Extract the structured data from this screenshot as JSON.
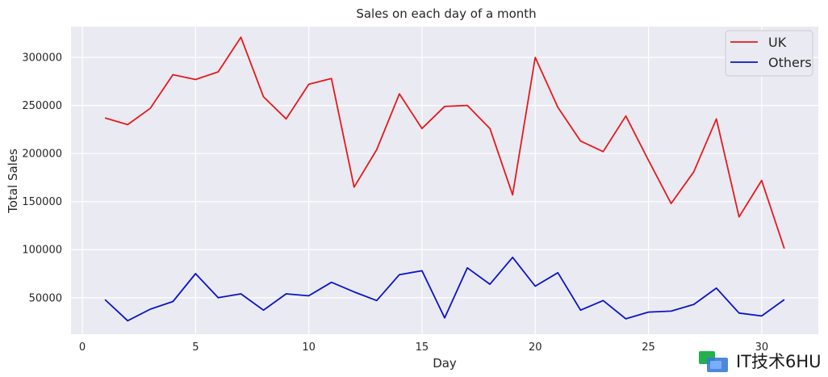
{
  "chart_data": {
    "type": "line",
    "title": "Sales on each day of a month",
    "xlabel": "Day",
    "ylabel": "Total Sales",
    "xlim": [
      -0.5,
      32.5
    ],
    "ylim": [
      12000,
      332000
    ],
    "xticks": [
      0,
      5,
      10,
      15,
      20,
      25,
      30
    ],
    "yticks": [
      50000,
      100000,
      150000,
      200000,
      250000,
      300000
    ],
    "grid": true,
    "legend_position": "top-right",
    "x": [
      1,
      2,
      3,
      4,
      5,
      6,
      7,
      8,
      9,
      10,
      11,
      12,
      13,
      14,
      15,
      16,
      17,
      18,
      19,
      20,
      21,
      22,
      23,
      24,
      25,
      26,
      27,
      28,
      29,
      30,
      31
    ],
    "series": [
      {
        "name": "UK",
        "color": "#e41a1c",
        "values": [
          237000,
          230000,
          247000,
          282000,
          277000,
          285000,
          321000,
          259000,
          236000,
          272000,
          278000,
          165000,
          204000,
          262000,
          226000,
          249000,
          250000,
          226000,
          157000,
          300000,
          248000,
          213000,
          202000,
          239000,
          193000,
          148000,
          181000,
          236000,
          134000,
          172000,
          101000
        ]
      },
      {
        "name": "Others",
        "color": "#0a14c8",
        "values": [
          48000,
          26000,
          38000,
          46000,
          75000,
          50000,
          54000,
          37000,
          54000,
          52000,
          66000,
          56000,
          47000,
          74000,
          78000,
          29000,
          81000,
          64000,
          92000,
          62000,
          76000,
          37000,
          47000,
          28000,
          35000,
          36000,
          43000,
          60000,
          34000,
          31000,
          48000
        ]
      }
    ]
  },
  "watermark": {
    "text": "IT技术6HU",
    "logo_icon": "watermark-logo-icon"
  }
}
